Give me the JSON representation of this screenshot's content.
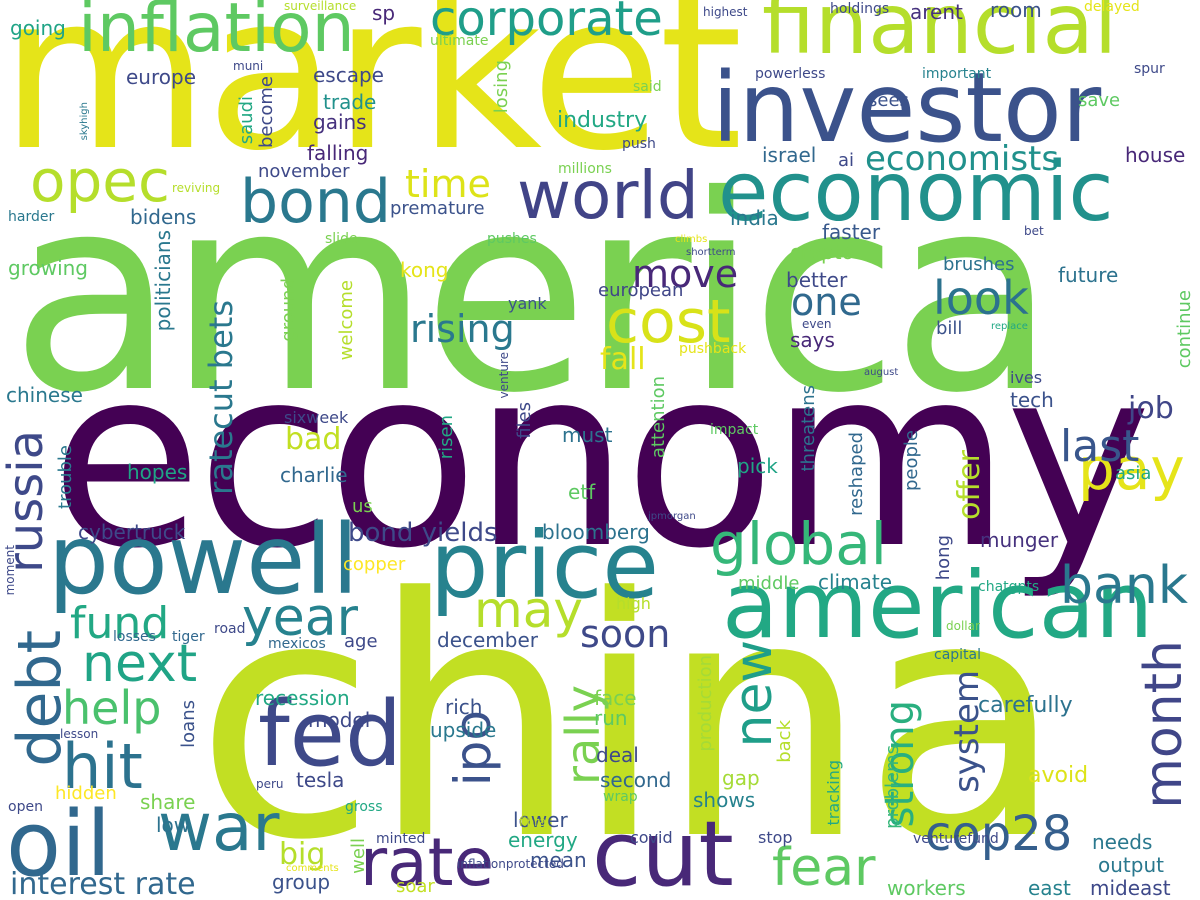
{
  "words": [
    {
      "text": "economy",
      "color": "#440154"
    },
    {
      "text": "china",
      "color": "#c2df23"
    },
    {
      "text": "america",
      "color": "#7ad151"
    },
    {
      "text": "market",
      "color": "#e5e419"
    },
    {
      "text": "investor",
      "color": "#3b528b"
    },
    {
      "text": "economic",
      "color": "#21918c"
    },
    {
      "text": "financial",
      "color": "#b5de2b"
    },
    {
      "text": "american",
      "color": "#22a884"
    },
    {
      "text": "inflation",
      "color": "#5ec962"
    },
    {
      "text": "corporate",
      "color": "#1f9e89"
    },
    {
      "text": "powell",
      "color": "#2a788e"
    },
    {
      "text": "price",
      "color": "#26828e"
    },
    {
      "text": "fed",
      "color": "#3e4989"
    },
    {
      "text": "oil",
      "color": "#31688e"
    },
    {
      "text": "cut",
      "color": "#482878"
    },
    {
      "text": "world",
      "color": "#414487"
    },
    {
      "text": "bond",
      "color": "#2a788e"
    },
    {
      "text": "opec",
      "color": "#b5de2b"
    },
    {
      "text": "debt",
      "color": "#31688e"
    },
    {
      "text": "russia",
      "color": "#3e4989"
    },
    {
      "text": "cost",
      "color": "#d8e219"
    },
    {
      "text": "global",
      "color": "#35b779"
    },
    {
      "text": "rate",
      "color": "#482878"
    },
    {
      "text": "war",
      "color": "#2a788e"
    },
    {
      "text": "new",
      "color": "#1f9e89"
    },
    {
      "text": "month",
      "color": "#404688"
    },
    {
      "text": "cop28",
      "color": "#355f8d"
    },
    {
      "text": "year",
      "color": "#26828e"
    },
    {
      "text": "next",
      "color": "#20a486"
    },
    {
      "text": "hit",
      "color": "#2c728e"
    },
    {
      "text": "fund",
      "color": "#22a884"
    },
    {
      "text": "bank",
      "color": "#2a788e"
    },
    {
      "text": "pay",
      "color": "#e5e419"
    },
    {
      "text": "fear",
      "color": "#5ec962"
    },
    {
      "text": "ipo",
      "color": "#3b528b"
    },
    {
      "text": "may",
      "color": "#b5de2b"
    },
    {
      "text": "rally",
      "color": "#7ad151"
    },
    {
      "text": "help",
      "color": "#4ac16d"
    },
    {
      "text": "look",
      "color": "#2c728e"
    },
    {
      "text": "one",
      "color": "#30698e"
    },
    {
      "text": "last",
      "color": "#39568c"
    },
    {
      "text": "soon",
      "color": "#3e4989"
    },
    {
      "text": "move",
      "color": "#482878"
    },
    {
      "text": "rising",
      "color": "#2a788e"
    },
    {
      "text": "time",
      "color": "#dde318"
    },
    {
      "text": "economists",
      "color": "#21918c"
    },
    {
      "text": "strong",
      "color": "#29af7f"
    },
    {
      "text": "system",
      "color": "#3b528b"
    },
    {
      "text": "interest rate",
      "color": "#31688e"
    },
    {
      "text": "ratecut bets",
      "color": "#2a788e"
    },
    {
      "text": "bond yields",
      "color": "#3e4989"
    },
    {
      "text": "job",
      "color": "#404688"
    },
    {
      "text": "fall",
      "color": "#e5e419"
    },
    {
      "text": "offer",
      "color": "#b5de2b"
    },
    {
      "text": "bad",
      "color": "#c2df23"
    },
    {
      "text": "big",
      "color": "#b5de2b"
    },
    {
      "text": "industry",
      "color": "#22a884"
    },
    {
      "text": "trade",
      "color": "#21918c"
    },
    {
      "text": "gains",
      "color": "#46327e"
    },
    {
      "text": "falling",
      "color": "#482878"
    },
    {
      "text": "november",
      "color": "#3e4989"
    },
    {
      "text": "bidens",
      "color": "#31688e"
    },
    {
      "text": "premature",
      "color": "#3b528b"
    },
    {
      "text": "india",
      "color": "#2a788e"
    },
    {
      "text": "faster",
      "color": "#38598c"
    },
    {
      "text": "crypto",
      "color": "#7ad151"
    },
    {
      "text": "better",
      "color": "#3e4989"
    },
    {
      "text": "future",
      "color": "#2c728e"
    },
    {
      "text": "brushes",
      "color": "#2c728e"
    },
    {
      "text": "growing",
      "color": "#5ec962"
    },
    {
      "text": "chinese",
      "color": "#2a788e"
    },
    {
      "text": "hopes",
      "color": "#20a486"
    },
    {
      "text": "charlie",
      "color": "#31688e"
    },
    {
      "text": "cybertruck",
      "color": "#3e4989"
    },
    {
      "text": "bloomberg",
      "color": "#2c728e"
    },
    {
      "text": "european",
      "color": "#404688"
    },
    {
      "text": "says",
      "color": "#482878"
    },
    {
      "text": "tech",
      "color": "#3b528b"
    },
    {
      "text": "must",
      "color": "#2c728e"
    },
    {
      "text": "pick",
      "color": "#20a486"
    },
    {
      "text": "etf",
      "color": "#5ec962"
    },
    {
      "text": "munger",
      "color": "#46327e"
    },
    {
      "text": "climate",
      "color": "#26828e"
    },
    {
      "text": "middle",
      "color": "#5ec962"
    },
    {
      "text": "copper",
      "color": "#fde725"
    },
    {
      "text": "december",
      "color": "#3b528b"
    },
    {
      "text": "recession",
      "color": "#22a884"
    },
    {
      "text": "model",
      "color": "#3e4989"
    },
    {
      "text": "upside",
      "color": "#2a788e"
    },
    {
      "text": "rich",
      "color": "#3b528b"
    },
    {
      "text": "face",
      "color": "#7ad151"
    },
    {
      "text": "run",
      "color": "#5ec962"
    },
    {
      "text": "deal",
      "color": "#3e4989"
    },
    {
      "text": "carefully",
      "color": "#2c728e"
    },
    {
      "text": "avoid",
      "color": "#dde318"
    },
    {
      "text": "tesla",
      "color": "#3e4989"
    },
    {
      "text": "second",
      "color": "#31688e"
    },
    {
      "text": "share",
      "color": "#7ad151"
    },
    {
      "text": "low",
      "color": "#2c728e"
    },
    {
      "text": "lower",
      "color": "#3b528b"
    },
    {
      "text": "shows",
      "color": "#26828e"
    },
    {
      "text": "gap",
      "color": "#a5db36"
    },
    {
      "text": "mean",
      "color": "#3b528b"
    },
    {
      "text": "energy",
      "color": "#22a884"
    },
    {
      "text": "needs",
      "color": "#2a788e"
    },
    {
      "text": "output",
      "color": "#2a788e"
    },
    {
      "text": "group",
      "color": "#3b528b"
    },
    {
      "text": "soar",
      "color": "#c2df23"
    },
    {
      "text": "workers",
      "color": "#5ec962"
    },
    {
      "text": "east",
      "color": "#26828e"
    },
    {
      "text": "mideast",
      "color": "#3e4989"
    },
    {
      "text": "hidden",
      "color": "#fde725"
    },
    {
      "text": "escape",
      "color": "#3e4989"
    },
    {
      "text": "sp",
      "color": "#482878"
    },
    {
      "text": "europe",
      "color": "#3e4989"
    },
    {
      "text": "going",
      "color": "#20a486"
    },
    {
      "text": "room",
      "color": "#3b528b"
    },
    {
      "text": "arent",
      "color": "#46327e"
    },
    {
      "text": "holdings",
      "color": "#3e4989"
    },
    {
      "text": "sees",
      "color": "#3b528b"
    },
    {
      "text": "important",
      "color": "#26828e"
    },
    {
      "text": "save",
      "color": "#5ec962"
    },
    {
      "text": "spur",
      "color": "#3e4989"
    },
    {
      "text": "powerless",
      "color": "#3e4989"
    },
    {
      "text": "israel",
      "color": "#31688e"
    },
    {
      "text": "ai",
      "color": "#3e4989"
    },
    {
      "text": "house",
      "color": "#482878"
    },
    {
      "text": "kong",
      "color": "#e5e419"
    },
    {
      "text": "ground",
      "color": "#7ad151"
    },
    {
      "text": "welcome",
      "color": "#b5de2b"
    },
    {
      "text": "politicians",
      "color": "#2a788e"
    },
    {
      "text": "saudi",
      "color": "#22a884"
    },
    {
      "text": "become",
      "color": "#3e4989"
    },
    {
      "text": "losing",
      "color": "#7ad151"
    },
    {
      "text": "files",
      "color": "#3e4989"
    },
    {
      "text": "risen",
      "color": "#22a884"
    },
    {
      "text": "attention",
      "color": "#5ec962"
    },
    {
      "text": "threatens",
      "color": "#2c728e"
    },
    {
      "text": "reshaped",
      "color": "#31688e"
    },
    {
      "text": "people",
      "color": "#31688e"
    },
    {
      "text": "continue",
      "color": "#5ec962"
    },
    {
      "text": "ives",
      "color": "#3e4989"
    },
    {
      "text": "asia",
      "color": "#22a884"
    },
    {
      "text": "hong",
      "color": "#3e4989"
    },
    {
      "text": "trouble",
      "color": "#2a788e"
    },
    {
      "text": "us",
      "color": "#7ad151"
    },
    {
      "text": "sixweek",
      "color": "#3e4989"
    },
    {
      "text": "impact",
      "color": "#5ec962"
    },
    {
      "text": "bill",
      "color": "#3b528b"
    },
    {
      "text": "yank",
      "color": "#3b528b"
    },
    {
      "text": "loans",
      "color": "#3b528b"
    },
    {
      "text": "production",
      "color": "#a5db36"
    },
    {
      "text": "back",
      "color": "#b5de2b"
    },
    {
      "text": "problems",
      "color": "#35b779"
    },
    {
      "text": "tracking",
      "color": "#22a884"
    },
    {
      "text": "wrap",
      "color": "#5ec962"
    },
    {
      "text": "covid",
      "color": "#3e4989"
    },
    {
      "text": "stop",
      "color": "#3e4989"
    },
    {
      "text": "well",
      "color": "#7ad151"
    },
    {
      "text": "minted",
      "color": "#3e4989"
    },
    {
      "text": "gross",
      "color": "#22a884"
    },
    {
      "text": "fibra",
      "color": "#c2df23"
    },
    {
      "text": "open",
      "color": "#3e4989"
    },
    {
      "text": "lesson",
      "color": "#3e4989"
    },
    {
      "text": "losses",
      "color": "#31688e"
    },
    {
      "text": "tiger",
      "color": "#31688e"
    },
    {
      "text": "road",
      "color": "#3e4989"
    },
    {
      "text": "mexicos",
      "color": "#31688e"
    },
    {
      "text": "age",
      "color": "#3e4989"
    },
    {
      "text": "high",
      "color": "#b5de2b"
    },
    {
      "text": "capital",
      "color": "#2a788e"
    },
    {
      "text": "dollar",
      "color": "#7ad151"
    },
    {
      "text": "chatgpts",
      "color": "#22a884"
    },
    {
      "text": "venturefund",
      "color": "#3e4989"
    },
    {
      "text": "moment",
      "color": "#3e4989"
    },
    {
      "text": "peru",
      "color": "#3e4989"
    },
    {
      "text": "comments",
      "color": "#e5e419"
    },
    {
      "text": "inflationprotected",
      "color": "#3e4989"
    },
    {
      "text": "surveillance",
      "color": "#b5de2b"
    },
    {
      "text": "ultimate",
      "color": "#7ad151"
    },
    {
      "text": "highest",
      "color": "#3e4989"
    },
    {
      "text": "delayed",
      "color": "#e5e419"
    },
    {
      "text": "muni",
      "color": "#3e4989"
    },
    {
      "text": "said",
      "color": "#7ad151"
    },
    {
      "text": "skyhigh",
      "color": "#2a788e"
    },
    {
      "text": "millions",
      "color": "#7ad151"
    },
    {
      "text": "push",
      "color": "#3e4989"
    },
    {
      "text": "reviving",
      "color": "#b5de2b"
    },
    {
      "text": "harder",
      "color": "#2a788e"
    },
    {
      "text": "slide",
      "color": "#7ad151"
    },
    {
      "text": "pushes",
      "color": "#5ec962"
    },
    {
      "text": "climbs",
      "color": "#e5e419"
    },
    {
      "text": "shortterm",
      "color": "#3e4989"
    },
    {
      "text": "bet",
      "color": "#3e4989"
    },
    {
      "text": "even",
      "color": "#3e4989"
    },
    {
      "text": "replace",
      "color": "#22a884"
    },
    {
      "text": "pushback",
      "color": "#e5e419"
    },
    {
      "text": "august",
      "color": "#3e4989"
    },
    {
      "text": "venture",
      "color": "#3e4989"
    },
    {
      "text": "jpmorgan",
      "color": "#3e4989"
    }
  ]
}
